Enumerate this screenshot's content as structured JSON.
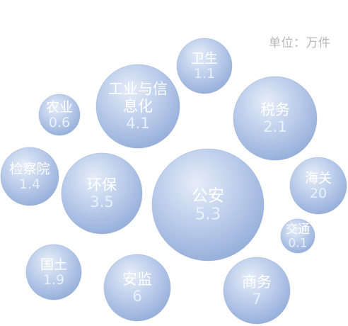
{
  "unit_note": "单位：万件",
  "colors": {
    "bubble_light": "#e6edf8",
    "bubble_mid": "#b9cbea",
    "bubble_dark": "#93acd8",
    "bubble_stroke": "#7f9acb",
    "text": "#ffffff"
  },
  "chart_data": {
    "type": "bubble",
    "title": "",
    "unit": "万件",
    "grid": false,
    "legend": "none",
    "bubbles": [
      {
        "label": "卫生",
        "value": "1.1"
      },
      {
        "label": "工业与信息化",
        "value": "4.1"
      },
      {
        "label": "税务",
        "value": "2.1"
      },
      {
        "label": "农业",
        "value": "0.6"
      },
      {
        "label": "检察院",
        "value": "1.4"
      },
      {
        "label": "环保",
        "value": "3.5"
      },
      {
        "label": "公安",
        "value": "5.3"
      },
      {
        "label": "海关",
        "value": "20"
      },
      {
        "label": "交通",
        "value": "0.1"
      },
      {
        "label": "国土",
        "value": "1.9"
      },
      {
        "label": "安监",
        "value": "6"
      },
      {
        "label": "商务",
        "value": "7"
      }
    ]
  }
}
